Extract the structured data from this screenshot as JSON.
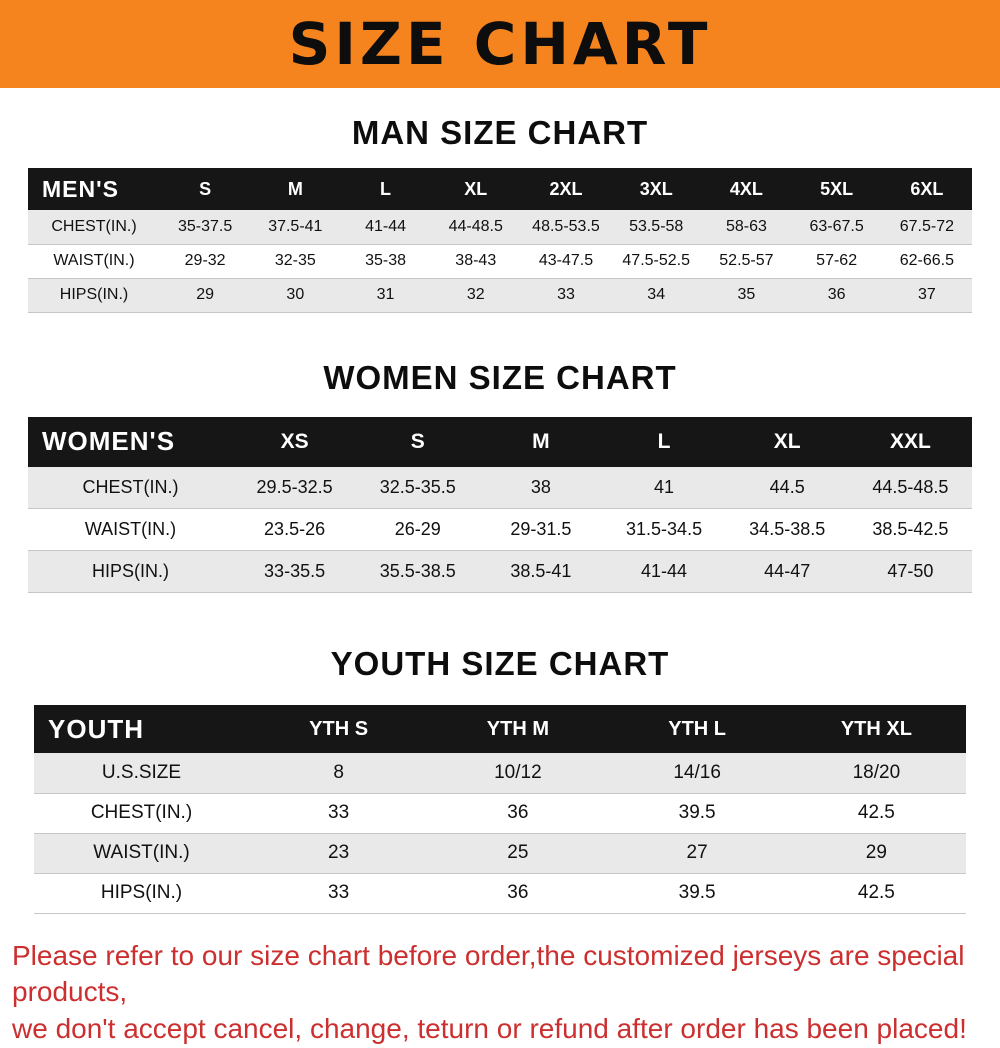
{
  "banner": {
    "title": "SIZE CHART"
  },
  "colors": {
    "banner_bg": "#f5841f",
    "table_header_bg": "#161616",
    "row_alt_bg": "#e9e9e9",
    "note_text": "#cc2f2f"
  },
  "note": {
    "line1": "Please refer to our size chart before order,the customized jerseys are special products,",
    "line2": "we don't accept cancel, change, teturn or refund after order has been placed!"
  },
  "chart_data": [
    {
      "type": "table",
      "title": "MAN SIZE CHART",
      "corner_label": "MEN'S",
      "columns": [
        "S",
        "M",
        "L",
        "XL",
        "2XL",
        "3XL",
        "4XL",
        "5XL",
        "6XL"
      ],
      "rows": [
        {
          "label": "CHEST(IN.)",
          "values": [
            "35-37.5",
            "37.5-41",
            "41-44",
            "44-48.5",
            "48.5-53.5",
            "53.5-58",
            "58-63",
            "63-67.5",
            "67.5-72"
          ]
        },
        {
          "label": "WAIST(IN.)",
          "values": [
            "29-32",
            "32-35",
            "35-38",
            "38-43",
            "43-47.5",
            "47.5-52.5",
            "52.5-57",
            "57-62",
            "62-66.5"
          ]
        },
        {
          "label": "HIPS(IN.)",
          "values": [
            "29",
            "30",
            "31",
            "32",
            "33",
            "34",
            "35",
            "36",
            "37"
          ]
        }
      ]
    },
    {
      "type": "table",
      "title": "WOMEN SIZE CHART",
      "corner_label": "WOMEN'S",
      "columns": [
        "XS",
        "S",
        "M",
        "L",
        "XL",
        "XXL"
      ],
      "rows": [
        {
          "label": "CHEST(IN.)",
          "values": [
            "29.5-32.5",
            "32.5-35.5",
            "38",
            "41",
            "44.5",
            "44.5-48.5"
          ]
        },
        {
          "label": "WAIST(IN.)",
          "values": [
            "23.5-26",
            "26-29",
            "29-31.5",
            "31.5-34.5",
            "34.5-38.5",
            "38.5-42.5"
          ]
        },
        {
          "label": "HIPS(IN.)",
          "values": [
            "33-35.5",
            "35.5-38.5",
            "38.5-41",
            "41-44",
            "44-47",
            "47-50"
          ]
        }
      ]
    },
    {
      "type": "table",
      "title": "YOUTH SIZE CHART",
      "corner_label": "YOUTH",
      "columns": [
        "YTH S",
        "YTH M",
        "YTH L",
        "YTH XL"
      ],
      "rows": [
        {
          "label": "U.S.SIZE",
          "values": [
            "8",
            "10/12",
            "14/16",
            "18/20"
          ]
        },
        {
          "label": "CHEST(IN.)",
          "values": [
            "33",
            "36",
            "39.5",
            "42.5"
          ]
        },
        {
          "label": "WAIST(IN.)",
          "values": [
            "23",
            "25",
            "27",
            "29"
          ]
        },
        {
          "label": "HIPS(IN.)",
          "values": [
            "33",
            "36",
            "39.5",
            "42.5"
          ]
        }
      ]
    }
  ]
}
